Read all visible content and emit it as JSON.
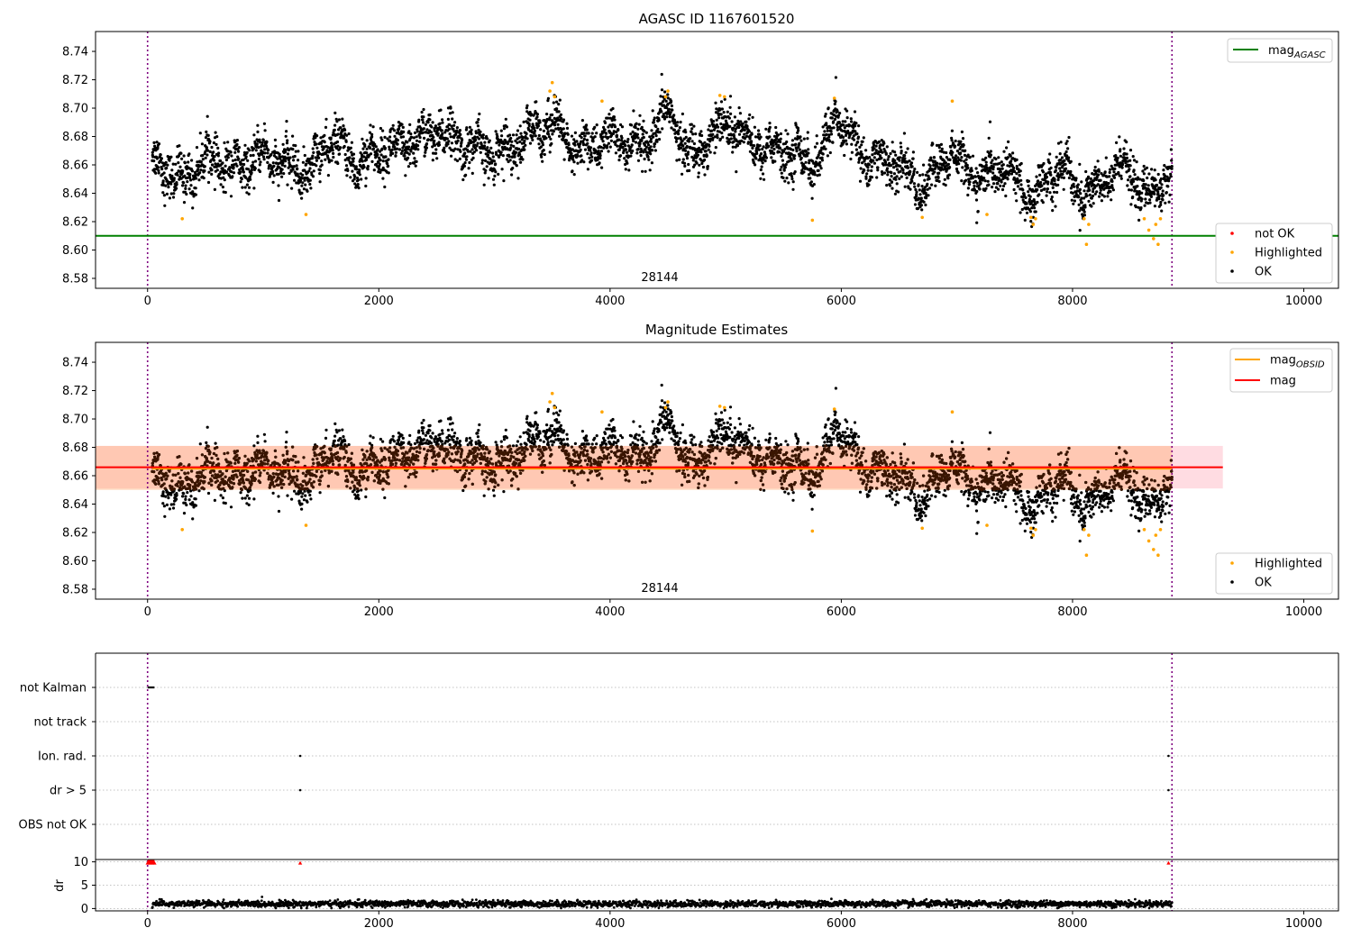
{
  "chart_data": [
    {
      "type": "scatter",
      "title": "AGASC ID 1167601520",
      "annotation": "28144",
      "xlim": [
        -450,
        10300
      ],
      "ylim": [
        8.573,
        8.754
      ],
      "xticks": [
        0,
        2000,
        4000,
        6000,
        8000,
        10000
      ],
      "yticks": [
        8.58,
        8.6,
        8.62,
        8.64,
        8.66,
        8.68,
        8.7,
        8.72,
        8.74
      ],
      "vlines": [
        0,
        8860
      ],
      "hline": {
        "name": "mag$_{AGASC}$",
        "value": 8.61,
        "color": "#008000"
      },
      "legend_lines": [
        {
          "label": "mag",
          "sub": "AGASC",
          "color": "#008000"
        }
      ],
      "legend_points": [
        {
          "label": "not OK",
          "color": "#ff0000"
        },
        {
          "label": "Highlighted",
          "color": "#ffa500"
        },
        {
          "label": "OK",
          "color": "#000000"
        }
      ],
      "series": [
        {
          "name": "OK",
          "color": "#000000",
          "trend_x": [
            40,
            300,
            500,
            800,
            1000,
            1200,
            1400,
            1600,
            1800,
            2000,
            2200,
            2500,
            2800,
            3000,
            3200,
            3500,
            3700,
            4000,
            4300,
            4500,
            4700,
            5000,
            5300,
            5600,
            5800,
            5950,
            6200,
            6500,
            6700,
            6950,
            7200,
            7400,
            7650,
            7900,
            8050,
            8200,
            8450,
            8650,
            8860
          ],
          "trend_y": [
            8.665,
            8.648,
            8.665,
            8.657,
            8.668,
            8.66,
            8.655,
            8.68,
            8.66,
            8.67,
            8.672,
            8.683,
            8.672,
            8.668,
            8.675,
            8.692,
            8.668,
            8.68,
            8.67,
            8.7,
            8.665,
            8.692,
            8.672,
            8.668,
            8.66,
            8.695,
            8.665,
            8.66,
            8.642,
            8.67,
            8.648,
            8.66,
            8.635,
            8.662,
            8.64,
            8.642,
            8.662,
            8.635,
            8.658
          ]
        },
        {
          "name": "Highlighted",
          "color": "#ffa500",
          "points": [
            [
              300,
              8.622
            ],
            [
              1370,
              8.625
            ],
            [
              3480,
              8.712
            ],
            [
              3500,
              8.718
            ],
            [
              3520,
              8.708
            ],
            [
              3930,
              8.705
            ],
            [
              4480,
              8.708
            ],
            [
              4500,
              8.712
            ],
            [
              4950,
              8.709
            ],
            [
              4990,
              8.708
            ],
            [
              5750,
              8.621
            ],
            [
              5940,
              8.707
            ],
            [
              6700,
              8.623
            ],
            [
              6960,
              8.705
            ],
            [
              7260,
              8.625
            ],
            [
              7640,
              8.623
            ],
            [
              7660,
              8.618
            ],
            [
              7680,
              8.622
            ],
            [
              8100,
              8.622
            ],
            [
              8120,
              8.604
            ],
            [
              8140,
              8.618
            ],
            [
              8620,
              8.622
            ],
            [
              8660,
              8.614
            ],
            [
              8700,
              8.608
            ],
            [
              8720,
              8.618
            ],
            [
              8740,
              8.604
            ],
            [
              8760,
              8.622
            ]
          ]
        }
      ]
    },
    {
      "type": "scatter",
      "title": "Magnitude Estimates",
      "annotation": "28144",
      "xlim": [
        -450,
        10300
      ],
      "ylim": [
        8.573,
        8.754
      ],
      "xticks": [
        0,
        2000,
        4000,
        6000,
        8000,
        10000
      ],
      "yticks": [
        8.58,
        8.6,
        8.62,
        8.64,
        8.66,
        8.68,
        8.7,
        8.72,
        8.74
      ],
      "vlines": [
        0,
        8860
      ],
      "band_obsid": {
        "x": [
          -450,
          8860
        ],
        "y": [
          8.65,
          8.681
        ]
      },
      "band_mag": {
        "x": [
          -450,
          9300
        ],
        "y": [
          8.651,
          8.681
        ]
      },
      "lines": [
        {
          "label": "mag",
          "sub": "OBSID",
          "value": 8.665,
          "x": [
            40,
            8860
          ],
          "color": "#ffa500"
        },
        {
          "label": "mag",
          "sub": "",
          "value": 8.666,
          "x": [
            -450,
            9300
          ],
          "color": "#ff0000"
        }
      ],
      "legend_points": [
        {
          "label": "Highlighted",
          "color": "#ffa500"
        },
        {
          "label": "OK",
          "color": "#000000"
        }
      ]
    },
    {
      "type": "scatter",
      "categories": [
        "not Kalman",
        "not track",
        "Ion. rad.",
        "dr > 5",
        "OBS not OK"
      ],
      "xlim": [
        -450,
        10300
      ],
      "xticks": [
        0,
        2000,
        4000,
        6000,
        8000,
        10000
      ],
      "vlines": [
        0,
        8860
      ],
      "flags": [
        {
          "category": "not Kalman",
          "x": [
            0,
            60
          ]
        },
        {
          "category": "Ion. rad.",
          "x": [
            1320,
            8830
          ]
        },
        {
          "category": "dr > 5",
          "x": [
            1320,
            8830
          ]
        }
      ],
      "ylabel": "dr",
      "dr_yticks": [
        0,
        5,
        10
      ],
      "dr_ylim": [
        -0.5,
        10.5
      ],
      "dr_level": 1.0,
      "dr_clipped": [
        [
          0,
          9.8
        ],
        [
          20,
          9.8
        ],
        [
          40,
          9.8
        ],
        [
          60,
          9.8
        ],
        [
          1320,
          9.8
        ],
        [
          8830,
          9.8
        ]
      ]
    }
  ]
}
